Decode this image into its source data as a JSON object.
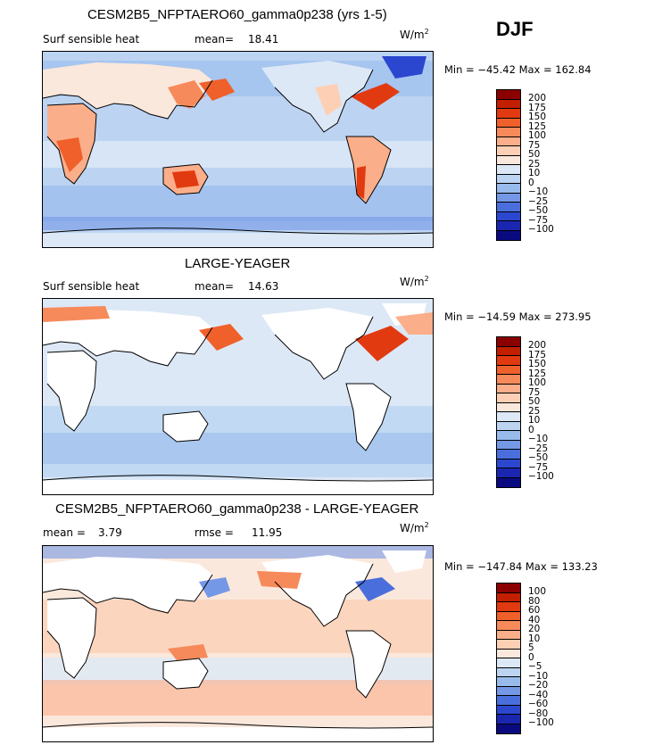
{
  "season": "DJF",
  "units": "W/m",
  "units_exp": "2",
  "panels": [
    {
      "title": "CESM2B5_NFPTAERO60_gamma0p238 (yrs 1-5)",
      "variable": "Surf sensible heat",
      "stat1_label": "mean=",
      "stat1_value": "18.41",
      "stat2_label": "",
      "stat2_value": "",
      "min_max": "Min = −45.42 Max = 162.84",
      "colorbar_labels": [
        "200",
        "175",
        "150",
        "125",
        "100",
        "75",
        "50",
        "25",
        "10",
        "0",
        "−10",
        "−25",
        "−50",
        "−75",
        "−100"
      ]
    },
    {
      "title": "LARGE-YEAGER",
      "variable": "Surf sensible heat",
      "stat1_label": "mean=",
      "stat1_value": "14.63",
      "stat2_label": "",
      "stat2_value": "",
      "min_max": "Min = −14.59 Max = 273.95",
      "colorbar_labels": [
        "200",
        "175",
        "150",
        "125",
        "100",
        "75",
        "50",
        "25",
        "10",
        "0",
        "−10",
        "−25",
        "−50",
        "−75",
        "−100"
      ]
    },
    {
      "title": "CESM2B5_NFPTAERO60_gamma0p238 - LARGE-YEAGER",
      "variable": "",
      "stat1_label": "mean =",
      "stat1_value": "3.79",
      "stat2_label": "rmse =",
      "stat2_value": "11.95",
      "min_max": "Min = −147.84 Max = 133.23",
      "colorbar_labels": [
        "100",
        "80",
        "60",
        "40",
        "20",
        "10",
        "5",
        "0",
        "−5",
        "−10",
        "−20",
        "−40",
        "−60",
        "−80",
        "−100"
      ]
    }
  ],
  "colorbar_colors": [
    "#8b0000",
    "#c21e00",
    "#e23a10",
    "#f0602a",
    "#f78a5a",
    "#fbae8a",
    "#fdd0b6",
    "#fbe8dc",
    "#dde8f6",
    "#bcd4f2",
    "#98bbec",
    "#7498e6",
    "#4a6fdc",
    "#2b47cf",
    "#1a26b0",
    "#0a0a80"
  ]
}
